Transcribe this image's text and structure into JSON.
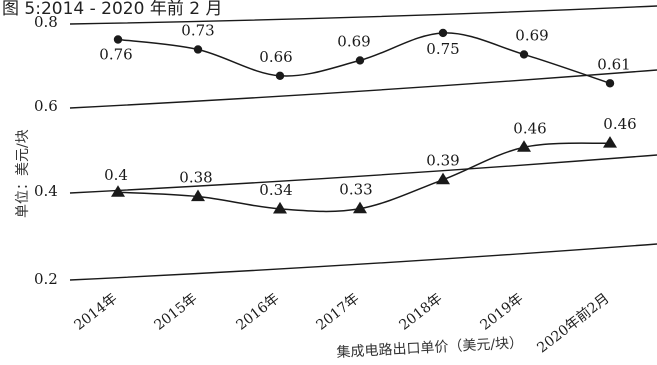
{
  "title_fragment": "图 5:2014 - 2020 年前 2 月",
  "caption_fragment": "集成电路出口单价（美元/块）",
  "chart_data": {
    "type": "line",
    "categories": [
      "2014年",
      "2015年",
      "2016年",
      "2017年",
      "2018年",
      "2019年",
      "2020年前2月"
    ],
    "ylabel": "单位：美元/块",
    "yticks": [
      "0.2",
      "0.4",
      "0.6",
      "0.8"
    ],
    "series": [
      {
        "values": [
          0.76,
          0.73,
          0.66,
          0.69,
          0.75,
          0.69,
          0.61
        ],
        "labels": [
          "0.76",
          "0.73",
          "0.66",
          "0.69",
          "0.75",
          "0.69",
          "0.61"
        ],
        "marker": "circle"
      },
      {
        "values": [
          0.4,
          0.38,
          0.34,
          0.33,
          0.39,
          0.46,
          0.46
        ],
        "labels": [
          "0.4",
          "0.38",
          "0.34",
          "0.33",
          "0.39",
          "0.46",
          "0.46"
        ],
        "marker": "triangle"
      }
    ],
    "grid": true,
    "colors": {
      "line": "#1a1a1a",
      "grid": "#1a1a1a"
    }
  }
}
